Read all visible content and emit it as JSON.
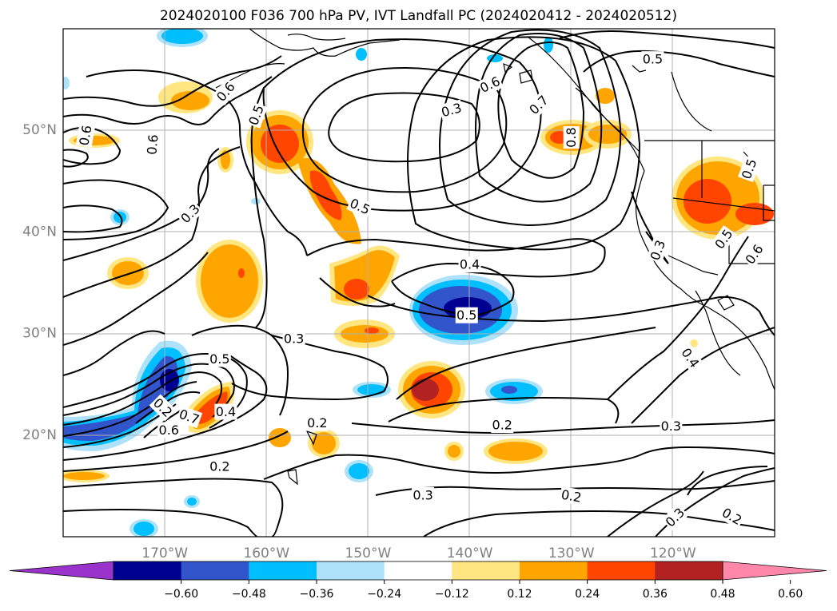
{
  "title": "2024020100 F036 700 hPa PV, IVT Landfall PC (2024020412 - 2024020512)",
  "lat_ticks": [
    {
      "value": 50,
      "label": "50°N"
    },
    {
      "value": 40,
      "label": "40°N"
    },
    {
      "value": 30,
      "label": "30°N"
    },
    {
      "value": 20,
      "label": "20°N"
    }
  ],
  "lon_ticks": [
    {
      "value": -170,
      "label": "170°W"
    },
    {
      "value": -160,
      "label": "160°W"
    },
    {
      "value": -150,
      "label": "150°W"
    },
    {
      "value": -140,
      "label": "140°W"
    },
    {
      "value": -130,
      "label": "130°W"
    },
    {
      "value": -120,
      "label": "120°W"
    }
  ],
  "colorbar": {
    "bounds": [
      -0.6,
      -0.48,
      -0.36,
      -0.24,
      -0.12,
      0.12,
      0.24,
      0.36,
      0.48,
      0.6
    ],
    "tick_labels": [
      "−0.60",
      "−0.48",
      "−0.36",
      "−0.24",
      "−0.12",
      "0.12",
      "0.24",
      "0.36",
      "0.48",
      "0.60"
    ],
    "colors": [
      "#9933cc",
      "#000090",
      "#3355cc",
      "#00bfff",
      "#aee1fa",
      "#ffffff",
      "#ffe680",
      "#ffa500",
      "#ff4500",
      "#b22222",
      "#ff88aa"
    ],
    "extend": "both"
  },
  "contour_labels": [
    {
      "text": "0.6",
      "lon": -164,
      "lat": 53.8,
      "rot": 50
    },
    {
      "text": "0.5",
      "lon": -161,
      "lat": 51.5,
      "rot": 70
    },
    {
      "text": "0.6",
      "lon": -177.8,
      "lat": 49.5,
      "rot": 80
    },
    {
      "text": "0.6",
      "lon": -171.2,
      "lat": 48.6,
      "rot": 85
    },
    {
      "text": "0.3",
      "lon": -167.5,
      "lat": 41.8,
      "rot": 45
    },
    {
      "text": "0.5",
      "lon": -150.8,
      "lat": 42.5,
      "rot": -25
    },
    {
      "text": "0.6",
      "lon": -138,
      "lat": 54.5,
      "rot": 25
    },
    {
      "text": "0.3",
      "lon": -141.8,
      "lat": 52.0,
      "rot": 15
    },
    {
      "text": "0.7",
      "lon": -133.2,
      "lat": 52.5,
      "rot": 45
    },
    {
      "text": "0.8",
      "lon": -130.0,
      "lat": 49.3,
      "rot": 90
    },
    {
      "text": "0.5",
      "lon": -122.0,
      "lat": 57.0,
      "rot": 0
    },
    {
      "text": "0.4",
      "lon": -140.0,
      "lat": 36.8,
      "rot": 0
    },
    {
      "text": "0.5",
      "lon": -140.3,
      "lat": 31.8,
      "rot": 0
    },
    {
      "text": "0.3",
      "lon": -121.5,
      "lat": 38.2,
      "rot": 70
    },
    {
      "text": "0.5",
      "lon": -115.0,
      "lat": 39.3,
      "rot": 55
    },
    {
      "text": "0.5",
      "lon": -112.5,
      "lat": 46.2,
      "rot": 70
    },
    {
      "text": "0.6",
      "lon": -112.0,
      "lat": 37.8,
      "rot": 55
    },
    {
      "text": "0.4",
      "lon": -118.3,
      "lat": 27.6,
      "rot": -55
    },
    {
      "text": "0.3",
      "lon": -157.3,
      "lat": 29.5,
      "rot": 0
    },
    {
      "text": "0.5",
      "lon": -164.6,
      "lat": 27.5,
      "rot": 0
    },
    {
      "text": "0.2",
      "lon": -170.2,
      "lat": 22.7,
      "rot": -45
    },
    {
      "text": "0.7",
      "lon": -167.6,
      "lat": 21.8,
      "rot": -20
    },
    {
      "text": "0.6",
      "lon": -169.6,
      "lat": 20.5,
      "rot": 0
    },
    {
      "text": "0.4",
      "lon": -164.0,
      "lat": 22.3,
      "rot": 0
    },
    {
      "text": "0.2",
      "lon": -155.0,
      "lat": 21.2,
      "rot": 0
    },
    {
      "text": "0.2",
      "lon": -136.8,
      "lat": 21.0,
      "rot": 0
    },
    {
      "text": "0.3",
      "lon": -120.2,
      "lat": 20.9,
      "rot": 0
    },
    {
      "text": "0.2",
      "lon": -164.6,
      "lat": 16.9,
      "rot": 0
    },
    {
      "text": "0.3",
      "lon": -144.6,
      "lat": 14.1,
      "rot": 0
    },
    {
      "text": "0.2",
      "lon": -130.0,
      "lat": 14.0,
      "rot": -10
    },
    {
      "text": "0.3",
      "lon": -119.8,
      "lat": 11.9,
      "rot": 45
    },
    {
      "text": "0.2",
      "lon": -114.2,
      "lat": 12.0,
      "rot": -30
    }
  ]
}
